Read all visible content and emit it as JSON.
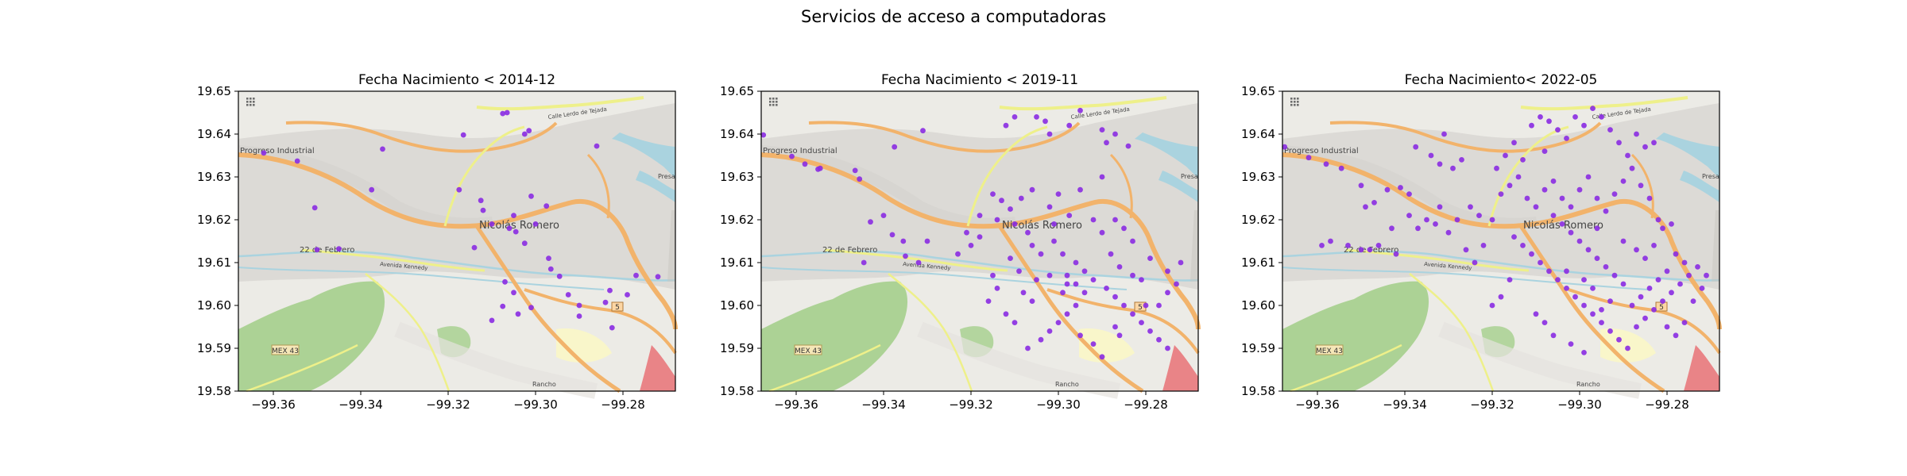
{
  "figure": {
    "suptitle": "Servicios de acceso a computadoras"
  },
  "map_labels": {
    "town": "Nicolás Romero",
    "industrial": "Progreso Industrial",
    "feb22": "22 de Febrero",
    "road_north": "Calle Lerdo de Tejada",
    "avenue": "Avenida Kennedy",
    "highway": "MEX 43",
    "route5": "5",
    "rancho": "Rancho",
    "presa": "Presa"
  },
  "colors": {
    "points": "#8a2be2",
    "map_background": "#ecebe6",
    "urban": "#d9d7d2",
    "park": "#a5cf8c",
    "water": "#aad3df",
    "major_road": "#f2b36b",
    "secondary_road": "#eef08a",
    "industrial_red": "#e98487"
  },
  "chart_data": [
    {
      "type": "scatter",
      "title": "Fecha Nacimiento < 2014-12",
      "xlim": [
        -99.368,
        -99.268
      ],
      "ylim": [
        19.58,
        19.65
      ],
      "xticks": [
        -99.36,
        -99.34,
        -99.32,
        -99.3,
        -99.28
      ],
      "yticks": [
        19.58,
        19.59,
        19.6,
        19.61,
        19.62,
        19.63,
        19.64,
        19.65
      ],
      "xtick_labels": [
        "−99.36",
        "−99.34",
        "−99.32",
        "−99.30",
        "−99.28"
      ],
      "ytick_labels": [
        "19.58",
        "19.59",
        "19.60",
        "19.61",
        "19.62",
        "19.63",
        "19.64",
        "19.65"
      ],
      "points": [
        [
          -99.3545,
          19.6337
        ],
        [
          -99.3622,
          19.6356
        ],
        [
          -99.3505,
          19.6228
        ],
        [
          -99.35,
          19.613
        ],
        [
          -99.345,
          19.6132
        ],
        [
          -99.335,
          19.6365
        ],
        [
          -99.3375,
          19.627
        ],
        [
          -99.3165,
          19.6398
        ],
        [
          -99.3175,
          19.627
        ],
        [
          -99.3125,
          19.6245
        ],
        [
          -99.3075,
          19.6448
        ],
        [
          -99.3065,
          19.645
        ],
        [
          -99.3015,
          19.6408
        ],
        [
          -99.3025,
          19.64
        ],
        [
          -99.301,
          19.6255
        ],
        [
          -99.312,
          19.6222
        ],
        [
          -99.31,
          19.619
        ],
        [
          -99.306,
          19.618
        ],
        [
          -99.305,
          19.621
        ],
        [
          -99.2975,
          19.6232
        ],
        [
          -99.286,
          19.6372
        ],
        [
          -99.314,
          19.6135
        ],
        [
          -99.3045,
          19.6172
        ],
        [
          -99.3025,
          19.6145
        ],
        [
          -99.297,
          19.611
        ],
        [
          -99.2965,
          19.6085
        ],
        [
          -99.3,
          19.619
        ],
        [
          -99.2945,
          19.6068
        ],
        [
          -99.2925,
          19.6025
        ],
        [
          -99.29,
          19.6
        ],
        [
          -99.29,
          19.5975
        ],
        [
          -99.307,
          19.6055
        ],
        [
          -99.305,
          19.603
        ],
        [
          -99.3075,
          19.5998
        ],
        [
          -99.304,
          19.598
        ],
        [
          -99.301,
          19.5995
        ],
        [
          -99.284,
          19.6007
        ],
        [
          -99.2825,
          19.5948
        ],
        [
          -99.283,
          19.6035
        ],
        [
          -99.277,
          19.607
        ],
        [
          -99.279,
          19.6025
        ],
        [
          -99.272,
          19.6067
        ],
        [
          -99.31,
          19.5965
        ]
      ]
    },
    {
      "type": "scatter",
      "title": "Fecha Nacimiento < 2019-11",
      "xlim": [
        -99.368,
        -99.268
      ],
      "ylim": [
        19.58,
        19.65
      ],
      "xticks": [
        -99.36,
        -99.34,
        -99.32,
        -99.3,
        -99.28
      ],
      "yticks": [
        19.58,
        19.59,
        19.6,
        19.61,
        19.62,
        19.63,
        19.64,
        19.65
      ],
      "xtick_labels": [
        "−99.36",
        "−99.34",
        "−99.32",
        "−99.30",
        "−99.28"
      ],
      "ytick_labels": [
        "19.58",
        "19.59",
        "19.60",
        "19.61",
        "19.62",
        "19.63",
        "19.64",
        "19.65"
      ],
      "points": [
        [
          -99.3675,
          19.6398
        ],
        [
          -99.361,
          19.6348
        ],
        [
          -99.358,
          19.633
        ],
        [
          -99.3545,
          19.632
        ],
        [
          -99.355,
          19.6318
        ],
        [
          -99.3465,
          19.6315
        ],
        [
          -99.3455,
          19.6295
        ],
        [
          -99.3375,
          19.637
        ],
        [
          -99.331,
          19.6408
        ],
        [
          -99.343,
          19.6195
        ],
        [
          -99.34,
          19.621
        ],
        [
          -99.338,
          19.6165
        ],
        [
          -99.3355,
          19.615
        ],
        [
          -99.3445,
          19.61
        ],
        [
          -99.335,
          19.6115
        ],
        [
          -99.33,
          19.615
        ],
        [
          -99.332,
          19.61
        ],
        [
          -99.318,
          19.616
        ],
        [
          -99.313,
          19.6245
        ],
        [
          -99.311,
          19.6225
        ],
        [
          -99.306,
          19.627
        ],
        [
          -99.3085,
          19.625
        ],
        [
          -99.3,
          19.626
        ],
        [
          -99.302,
          19.623
        ],
        [
          -99.2975,
          19.621
        ],
        [
          -99.295,
          19.627
        ],
        [
          -99.29,
          19.63
        ],
        [
          -99.305,
          19.644
        ],
        [
          -99.303,
          19.643
        ],
        [
          -99.2975,
          19.642
        ],
        [
          -99.302,
          19.64
        ],
        [
          -99.31,
          19.644
        ],
        [
          -99.312,
          19.642
        ],
        [
          -99.295,
          19.6455
        ],
        [
          -99.29,
          19.641
        ],
        [
          -99.287,
          19.64
        ],
        [
          -99.289,
          19.638
        ],
        [
          -99.284,
          19.6372
        ],
        [
          -99.315,
          19.626
        ],
        [
          -99.314,
          19.62
        ],
        [
          -99.31,
          19.619
        ],
        [
          -99.307,
          19.617
        ],
        [
          -99.306,
          19.614
        ],
        [
          -99.304,
          19.612
        ],
        [
          -99.301,
          19.615
        ],
        [
          -99.299,
          19.612
        ],
        [
          -99.296,
          19.61
        ],
        [
          -99.294,
          19.608
        ],
        [
          -99.292,
          19.606
        ],
        [
          -99.289,
          19.604
        ],
        [
          -99.287,
          19.602
        ],
        [
          -99.285,
          19.6
        ],
        [
          -99.283,
          19.598
        ],
        [
          -99.281,
          19.596
        ],
        [
          -99.279,
          19.594
        ],
        [
          -99.277,
          19.592
        ],
        [
          -99.275,
          19.59
        ],
        [
          -99.273,
          19.605
        ],
        [
          -99.275,
          19.608
        ],
        [
          -99.272,
          19.61
        ],
        [
          -99.279,
          19.611
        ],
        [
          -99.281,
          19.606
        ],
        [
          -99.283,
          19.607
        ],
        [
          -99.286,
          19.609
        ],
        [
          -99.288,
          19.612
        ],
        [
          -99.29,
          19.617
        ],
        [
          -99.292,
          19.62
        ],
        [
          -99.287,
          19.62
        ],
        [
          -99.285,
          19.618
        ],
        [
          -99.283,
          19.615
        ],
        [
          -99.294,
          19.603
        ],
        [
          -99.296,
          19.6
        ],
        [
          -99.298,
          19.598
        ],
        [
          -99.3,
          19.596
        ],
        [
          -99.302,
          19.594
        ],
        [
          -99.304,
          19.592
        ],
        [
          -99.307,
          19.59
        ],
        [
          -99.31,
          19.596
        ],
        [
          -99.312,
          19.598
        ],
        [
          -99.306,
          19.601
        ],
        [
          -99.308,
          19.603
        ],
        [
          -99.305,
          19.606
        ],
        [
          -99.309,
          19.608
        ],
        [
          -99.311,
          19.611
        ],
        [
          -99.315,
          19.607
        ],
        [
          -99.314,
          19.604
        ],
        [
          -99.316,
          19.601
        ],
        [
          -99.32,
          19.614
        ],
        [
          -99.321,
          19.617
        ],
        [
          -99.323,
          19.612
        ],
        [
          -99.298,
          19.605
        ],
        [
          -99.296,
          19.605
        ],
        [
          -99.299,
          19.603
        ],
        [
          -99.302,
          19.607
        ],
        [
          -99.298,
          19.607
        ],
        [
          -99.295,
          19.593
        ],
        [
          -99.292,
          19.591
        ],
        [
          -99.29,
          19.588
        ],
        [
          -99.287,
          19.595
        ],
        [
          -99.286,
          19.593
        ],
        [
          -99.277,
          19.6
        ],
        [
          -99.275,
          19.603
        ],
        [
          -99.28,
          19.6
        ],
        [
          -99.318,
          19.621
        ],
        [
          -99.301,
          19.619
        ]
      ]
    },
    {
      "type": "scatter",
      "title": "Fecha Nacimiento< 2022-05",
      "xlim": [
        -99.368,
        -99.268
      ],
      "ylim": [
        19.58,
        19.65
      ],
      "xticks": [
        -99.36,
        -99.34,
        -99.32,
        -99.3,
        -99.28
      ],
      "yticks": [
        19.58,
        19.59,
        19.6,
        19.61,
        19.62,
        19.63,
        19.64,
        19.65
      ],
      "xtick_labels": [
        "−99.36",
        "−99.34",
        "−99.32",
        "−99.30",
        "−99.28"
      ],
      "ytick_labels": [
        "19.58",
        "19.59",
        "19.60",
        "19.61",
        "19.62",
        "19.63",
        "19.64",
        "19.65"
      ],
      "points": [
        [
          -99.3675,
          19.637
        ],
        [
          -99.362,
          19.6345
        ],
        [
          -99.358,
          19.633
        ],
        [
          -99.3545,
          19.632
        ],
        [
          -99.35,
          19.628
        ],
        [
          -99.349,
          19.623
        ],
        [
          -99.347,
          19.624
        ],
        [
          -99.344,
          19.627
        ],
        [
          -99.341,
          19.6275
        ],
        [
          -99.339,
          19.626
        ],
        [
          -99.3375,
          19.637
        ],
        [
          -99.334,
          19.635
        ],
        [
          -99.331,
          19.64
        ],
        [
          -99.332,
          19.633
        ],
        [
          -99.329,
          19.632
        ],
        [
          -99.327,
          19.634
        ],
        [
          -99.339,
          19.621
        ],
        [
          -99.343,
          19.618
        ],
        [
          -99.346,
          19.614
        ],
        [
          -99.348,
          19.613
        ],
        [
          -99.35,
          19.613
        ],
        [
          -99.353,
          19.614
        ],
        [
          -99.357,
          19.615
        ],
        [
          -99.359,
          19.614
        ],
        [
          -99.342,
          19.612
        ],
        [
          -99.337,
          19.618
        ],
        [
          -99.333,
          19.619
        ],
        [
          -99.33,
          19.617
        ],
        [
          -99.328,
          19.62
        ],
        [
          -99.325,
          19.623
        ],
        [
          -99.323,
          19.621
        ],
        [
          -99.32,
          19.62
        ],
        [
          -99.318,
          19.626
        ],
        [
          -99.316,
          19.628
        ],
        [
          -99.314,
          19.63
        ],
        [
          -99.312,
          19.625
        ],
        [
          -99.31,
          19.623
        ],
        [
          -99.308,
          19.627
        ],
        [
          -99.306,
          19.629
        ],
        [
          -99.304,
          19.625
        ],
        [
          -99.302,
          19.623
        ],
        [
          -99.3,
          19.627
        ],
        [
          -99.298,
          19.63
        ],
        [
          -99.296,
          19.625
        ],
        [
          -99.294,
          19.622
        ],
        [
          -99.292,
          19.626
        ],
        [
          -99.29,
          19.629
        ],
        [
          -99.288,
          19.632
        ],
        [
          -99.286,
          19.628
        ],
        [
          -99.284,
          19.625
        ],
        [
          -99.311,
          19.642
        ],
        [
          -99.309,
          19.644
        ],
        [
          -99.307,
          19.643
        ],
        [
          -99.305,
          19.641
        ],
        [
          -99.303,
          19.639
        ],
        [
          -99.301,
          19.644
        ],
        [
          -99.299,
          19.642
        ],
        [
          -99.297,
          19.646
        ],
        [
          -99.295,
          19.644
        ],
        [
          -99.293,
          19.641
        ],
        [
          -99.291,
          19.638
        ],
        [
          -99.289,
          19.635
        ],
        [
          -99.287,
          19.64
        ],
        [
          -99.285,
          19.637
        ],
        [
          -99.283,
          19.638
        ],
        [
          -99.315,
          19.638
        ],
        [
          -99.317,
          19.635
        ],
        [
          -99.319,
          19.632
        ],
        [
          -99.313,
          19.634
        ],
        [
          -99.308,
          19.636
        ],
        [
          -99.315,
          19.616
        ],
        [
          -99.313,
          19.614
        ],
        [
          -99.311,
          19.612
        ],
        [
          -99.309,
          19.61
        ],
        [
          -99.307,
          19.608
        ],
        [
          -99.305,
          19.606
        ],
        [
          -99.303,
          19.604
        ],
        [
          -99.301,
          19.602
        ],
        [
          -99.299,
          19.6
        ],
        [
          -99.297,
          19.598
        ],
        [
          -99.295,
          19.596
        ],
        [
          -99.293,
          19.594
        ],
        [
          -99.291,
          19.592
        ],
        [
          -99.289,
          19.59
        ],
        [
          -99.287,
          19.595
        ],
        [
          -99.285,
          19.597
        ],
        [
          -99.283,
          19.599
        ],
        [
          -99.281,
          19.601
        ],
        [
          -99.279,
          19.603
        ],
        [
          -99.277,
          19.605
        ],
        [
          -99.275,
          19.607
        ],
        [
          -99.273,
          19.609
        ],
        [
          -99.271,
          19.607
        ],
        [
          -99.276,
          19.61
        ],
        [
          -99.278,
          19.612
        ],
        [
          -99.28,
          19.608
        ],
        [
          -99.282,
          19.606
        ],
        [
          -99.284,
          19.604
        ],
        [
          -99.286,
          19.602
        ],
        [
          -99.288,
          19.6
        ],
        [
          -99.29,
          19.605
        ],
        [
          -99.292,
          19.607
        ],
        [
          -99.294,
          19.609
        ],
        [
          -99.296,
          19.611
        ],
        [
          -99.298,
          19.613
        ],
        [
          -99.3,
          19.615
        ],
        [
          -99.302,
          19.617
        ],
        [
          -99.304,
          19.619
        ],
        [
          -99.306,
          19.621
        ],
        [
          -99.296,
          19.618
        ],
        [
          -99.29,
          19.615
        ],
        [
          -99.287,
          19.613
        ],
        [
          -99.285,
          19.611
        ],
        [
          -99.283,
          19.614
        ],
        [
          -99.281,
          19.618
        ],
        [
          -99.282,
          19.62
        ],
        [
          -99.279,
          19.619
        ],
        [
          -99.316,
          19.606
        ],
        [
          -99.318,
          19.602
        ],
        [
          -99.32,
          19.6
        ],
        [
          -99.31,
          19.598
        ],
        [
          -99.308,
          19.596
        ],
        [
          -99.306,
          19.593
        ],
        [
          -99.302,
          19.591
        ],
        [
          -99.299,
          19.589
        ],
        [
          -99.295,
          19.599
        ],
        [
          -99.293,
          19.601
        ],
        [
          -99.28,
          19.595
        ],
        [
          -99.278,
          19.593
        ],
        [
          -99.276,
          19.596
        ],
        [
          -99.274,
          19.601
        ],
        [
          -99.272,
          19.604
        ],
        [
          -99.322,
          19.614
        ],
        [
          -99.324,
          19.61
        ],
        [
          -99.326,
          19.613
        ],
        [
          -99.332,
          19.623
        ],
        [
          -99.335,
          19.62
        ],
        [
          -99.299,
          19.606
        ],
        [
          -99.297,
          19.604
        ],
        [
          -99.303,
          19.608
        ]
      ]
    }
  ]
}
